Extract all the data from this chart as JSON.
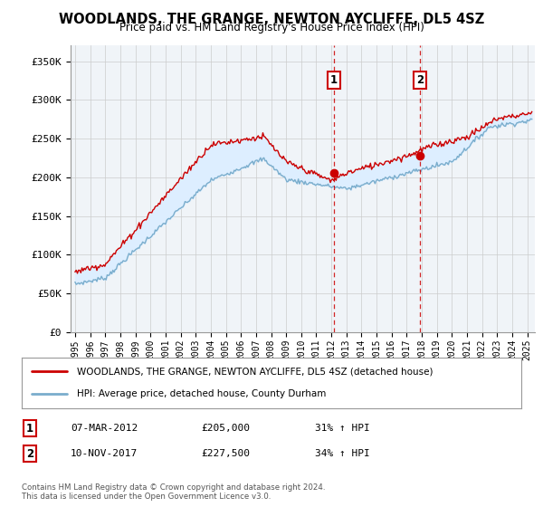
{
  "title": "WOODLANDS, THE GRANGE, NEWTON AYCLIFFE, DL5 4SZ",
  "subtitle": "Price paid vs. HM Land Registry's House Price Index (HPI)",
  "legend_line1": "WOODLANDS, THE GRANGE, NEWTON AYCLIFFE, DL5 4SZ (detached house)",
  "legend_line2": "HPI: Average price, detached house, County Durham",
  "footer": "Contains HM Land Registry data © Crown copyright and database right 2024.\nThis data is licensed under the Open Government Licence v3.0.",
  "sale1_date": "07-MAR-2012",
  "sale1_price": "£205,000",
  "sale1_hpi": "31% ↑ HPI",
  "sale1_year": 2012.18,
  "sale1_value": 205000,
  "sale2_date": "10-NOV-2017",
  "sale2_price": "£227,500",
  "sale2_hpi": "34% ↑ HPI",
  "sale2_year": 2017.86,
  "sale2_value": 227500,
  "red_color": "#cc0000",
  "blue_color": "#7aadcc",
  "shade_color": "#ddeeff",
  "grid_color": "#cccccc",
  "ylim": [
    0,
    370000
  ],
  "yticks": [
    0,
    50000,
    100000,
    150000,
    200000,
    250000,
    300000,
    350000
  ],
  "ytick_labels": [
    "£0",
    "£50K",
    "£100K",
    "£150K",
    "£200K",
    "£250K",
    "£300K",
    "£350K"
  ],
  "bg_color": "#f0f4f8"
}
